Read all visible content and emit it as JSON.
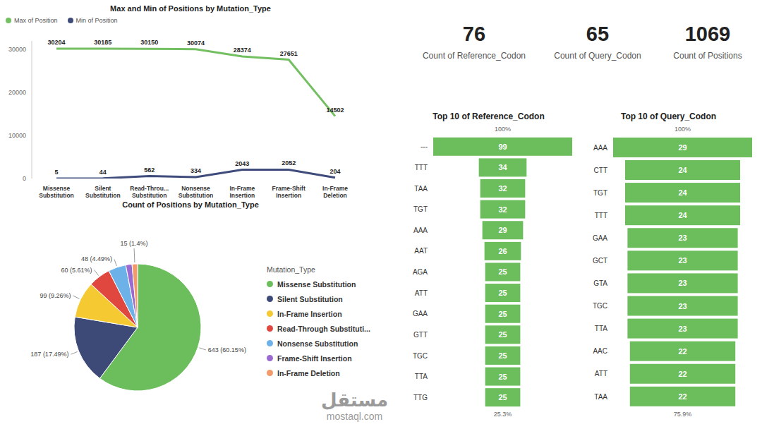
{
  "cards": [
    {
      "value": 76,
      "label": "Count of Reference_Codon"
    },
    {
      "value": 65,
      "label": "Count of Query_Codon"
    },
    {
      "value": 1069,
      "label": "Count of Positions"
    }
  ],
  "watermark": {
    "text": "مستقل",
    "url": "mostaql.com"
  },
  "chart_data": [
    {
      "type": "line",
      "title": "Max and Min of Positions by Mutation_Type",
      "categories": [
        "Missense Substitution",
        "Silent Substitution",
        "Read-Throu... Substitution",
        "Nonsense Substitution",
        "In-Frame Insertion",
        "Frame-Shift Insertion",
        "In-Frame Deletion"
      ],
      "series": [
        {
          "name": "Max of Position",
          "color": "#74bf62",
          "values": [
            30204,
            30185,
            30150,
            30074,
            28374,
            27651,
            14502
          ]
        },
        {
          "name": "Min of Position",
          "color": "#3f4b7b",
          "values": [
            5,
            44,
            562,
            334,
            2043,
            2052,
            204
          ]
        }
      ],
      "ylim": [
        0,
        32000
      ],
      "yticks": [
        0,
        10000,
        20000,
        30000
      ],
      "grid": false,
      "legend": "top-left",
      "data_labels": true,
      "marker": "none",
      "line_style": "solid"
    },
    {
      "type": "pie",
      "title": "Count of Positions by Mutation_Type",
      "legend_title": "Mutation_Type",
      "categories": [
        "Missense Substitution",
        "Silent Substitution",
        "In-Frame Insertion",
        "Read-Through Substituti...",
        "Nonsense Substitution",
        "Frame-Shift Insertion",
        "In-Frame Deletion"
      ],
      "values": [
        643,
        187,
        99,
        60,
        48,
        17,
        15
      ],
      "value_labels": [
        "643 (60.15%)",
        "187 (17.49%)",
        "99 (9.26%)",
        "60 (5.61%)",
        "48 (4.49%)",
        null,
        "15 (1.4%)"
      ],
      "colors": [
        "#6cbd5b",
        "#3d4a78",
        "#f5c932",
        "#e0483f",
        "#6cb2e8",
        "#9b6ad1",
        "#f19a6b"
      ],
      "legend": "right",
      "data_labels": true
    },
    {
      "type": "bar",
      "orientation": "horizontal",
      "title": "Top 10 of Reference_Codon",
      "categories": [
        "---",
        "TTT",
        "TAA",
        "TGT",
        "AAA",
        "AAT",
        "AGA",
        "ATT",
        "GAA",
        "GTT",
        "TGC",
        "TTA",
        "TTG"
      ],
      "values": [
        99,
        34,
        32,
        32,
        29,
        26,
        25,
        25,
        25,
        25,
        25,
        25,
        25
      ],
      "color": "#6cbd5b",
      "xlim": [
        0,
        99
      ],
      "tick_labels": "y",
      "data_labels": true,
      "annotations": [
        "100%",
        "25.3%"
      ]
    },
    {
      "type": "bar",
      "orientation": "horizontal",
      "title": "Top 10 of Query_Codon",
      "categories": [
        "AAA",
        "CTT",
        "TGT",
        "TTT",
        "GAA",
        "GCT",
        "GTA",
        "TGC",
        "TTA",
        "AAC",
        "ATT",
        "TAA"
      ],
      "values": [
        29,
        24,
        24,
        24,
        23,
        23,
        23,
        23,
        23,
        22,
        22,
        22
      ],
      "color": "#6cbd5b",
      "xlim": [
        0,
        29
      ],
      "tick_labels": "y",
      "data_labels": true,
      "annotations": [
        "100%",
        "75.9%"
      ]
    }
  ]
}
